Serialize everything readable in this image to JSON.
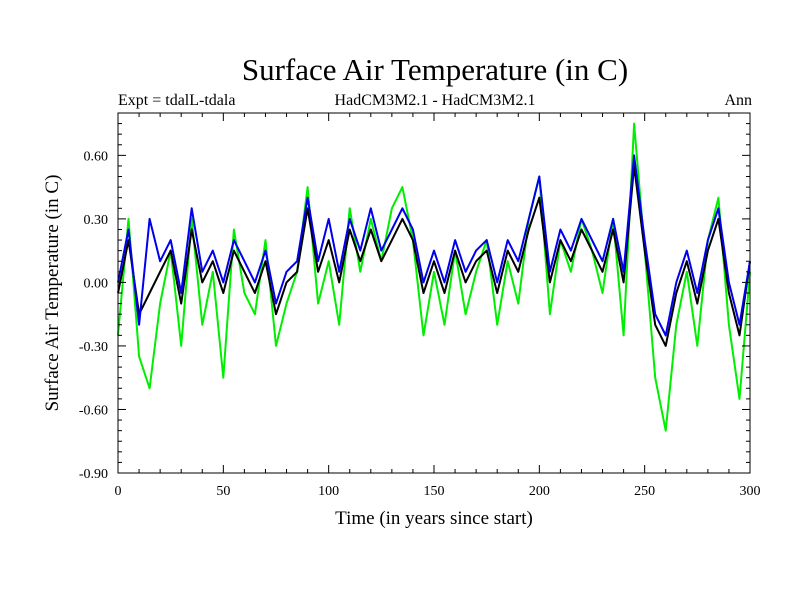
{
  "chart_data": {
    "type": "line",
    "title": "Surface Air Temperature (in C)",
    "subtitle_left": "Expt = tdalL-tdala",
    "subtitle_center": "HadCM3M2.1 - HadCM3M2.1",
    "subtitle_right": "Ann",
    "xlabel": "Time (in years since start)",
    "ylabel": "Surface Air Temperature (in C)",
    "xlim": [
      0,
      300
    ],
    "ylim": [
      -0.9,
      0.8
    ],
    "x_ticks": [
      0,
      50,
      100,
      150,
      200,
      250,
      300
    ],
    "x_tick_labels": [
      "0",
      "50",
      "100",
      "150",
      "200",
      "250",
      "300"
    ],
    "y_ticks": [
      -0.9,
      -0.6,
      -0.3,
      0.0,
      0.3,
      0.6
    ],
    "y_tick_labels": [
      "-0.90",
      "-0.60",
      "-0.30",
      "0.00",
      "0.30",
      "0.60"
    ],
    "grid": false,
    "series": [
      {
        "name": "green",
        "color": "#00ee00",
        "x": [
          0,
          5,
          10,
          15,
          20,
          25,
          30,
          35,
          40,
          45,
          50,
          55,
          60,
          65,
          70,
          75,
          80,
          85,
          90,
          95,
          100,
          105,
          110,
          115,
          120,
          125,
          130,
          135,
          140,
          145,
          150,
          155,
          160,
          165,
          170,
          175,
          180,
          185,
          190,
          195,
          200,
          205,
          210,
          215,
          220,
          225,
          230,
          235,
          240,
          245,
          250,
          255,
          260,
          265,
          270,
          275,
          280,
          285,
          290,
          295,
          300
        ],
        "values": [
          -0.25,
          0.3,
          -0.35,
          -0.5,
          -0.1,
          0.15,
          -0.3,
          0.3,
          -0.2,
          0.05,
          -0.45,
          0.25,
          -0.05,
          -0.15,
          0.2,
          -0.3,
          -0.1,
          0.05,
          0.45,
          -0.1,
          0.1,
          -0.2,
          0.35,
          0.05,
          0.3,
          0.1,
          0.35,
          0.45,
          0.2,
          -0.25,
          0.05,
          -0.2,
          0.15,
          -0.15,
          0.05,
          0.2,
          -0.2,
          0.1,
          -0.1,
          0.3,
          0.5,
          -0.15,
          0.2,
          0.05,
          0.3,
          0.15,
          -0.05,
          0.3,
          -0.25,
          0.75,
          0.15,
          -0.45,
          -0.7,
          -0.2,
          0.05,
          -0.3,
          0.2,
          0.4,
          -0.2,
          -0.55,
          0.05
        ]
      },
      {
        "name": "black",
        "color": "#000000",
        "x": [
          0,
          5,
          10,
          15,
          20,
          25,
          30,
          35,
          40,
          45,
          50,
          55,
          60,
          65,
          70,
          75,
          80,
          85,
          90,
          95,
          100,
          105,
          110,
          115,
          120,
          125,
          130,
          135,
          140,
          145,
          150,
          155,
          160,
          165,
          170,
          175,
          180,
          185,
          190,
          195,
          200,
          205,
          210,
          215,
          220,
          225,
          230,
          235,
          240,
          245,
          250,
          255,
          260,
          265,
          270,
          275,
          280,
          285,
          290,
          295,
          300
        ],
        "values": [
          -0.05,
          0.2,
          -0.15,
          -0.05,
          0.05,
          0.15,
          -0.1,
          0.25,
          0.0,
          0.1,
          -0.05,
          0.15,
          0.05,
          -0.05,
          0.1,
          -0.15,
          0.0,
          0.05,
          0.35,
          0.05,
          0.2,
          0.0,
          0.25,
          0.1,
          0.25,
          0.1,
          0.2,
          0.3,
          0.2,
          -0.05,
          0.1,
          -0.05,
          0.15,
          0.0,
          0.1,
          0.15,
          -0.05,
          0.15,
          0.05,
          0.25,
          0.4,
          0.0,
          0.2,
          0.1,
          0.25,
          0.15,
          0.05,
          0.25,
          0.0,
          0.55,
          0.15,
          -0.2,
          -0.3,
          -0.05,
          0.1,
          -0.1,
          0.15,
          0.3,
          -0.05,
          -0.25,
          0.1
        ]
      },
      {
        "name": "blue",
        "color": "#0000ee",
        "x": [
          0,
          5,
          10,
          15,
          20,
          25,
          30,
          35,
          40,
          45,
          50,
          55,
          60,
          65,
          70,
          75,
          80,
          85,
          90,
          95,
          100,
          105,
          110,
          115,
          120,
          125,
          130,
          135,
          140,
          145,
          150,
          155,
          160,
          165,
          170,
          175,
          180,
          185,
          190,
          195,
          200,
          205,
          210,
          215,
          220,
          225,
          230,
          235,
          240,
          245,
          250,
          255,
          260,
          265,
          270,
          275,
          280,
          285,
          290,
          295,
          300
        ],
        "values": [
          0.0,
          0.25,
          -0.2,
          0.3,
          0.1,
          0.2,
          -0.05,
          0.35,
          0.05,
          0.15,
          0.0,
          0.2,
          0.1,
          0.0,
          0.15,
          -0.1,
          0.05,
          0.1,
          0.4,
          0.1,
          0.3,
          0.05,
          0.3,
          0.15,
          0.35,
          0.15,
          0.25,
          0.35,
          0.25,
          0.0,
          0.15,
          0.0,
          0.2,
          0.05,
          0.15,
          0.2,
          0.0,
          0.2,
          0.1,
          0.3,
          0.5,
          0.05,
          0.25,
          0.15,
          0.3,
          0.2,
          0.1,
          0.3,
          0.05,
          0.6,
          0.2,
          -0.15,
          -0.25,
          0.0,
          0.15,
          -0.05,
          0.2,
          0.35,
          0.0,
          -0.2,
          0.1
        ]
      }
    ]
  }
}
